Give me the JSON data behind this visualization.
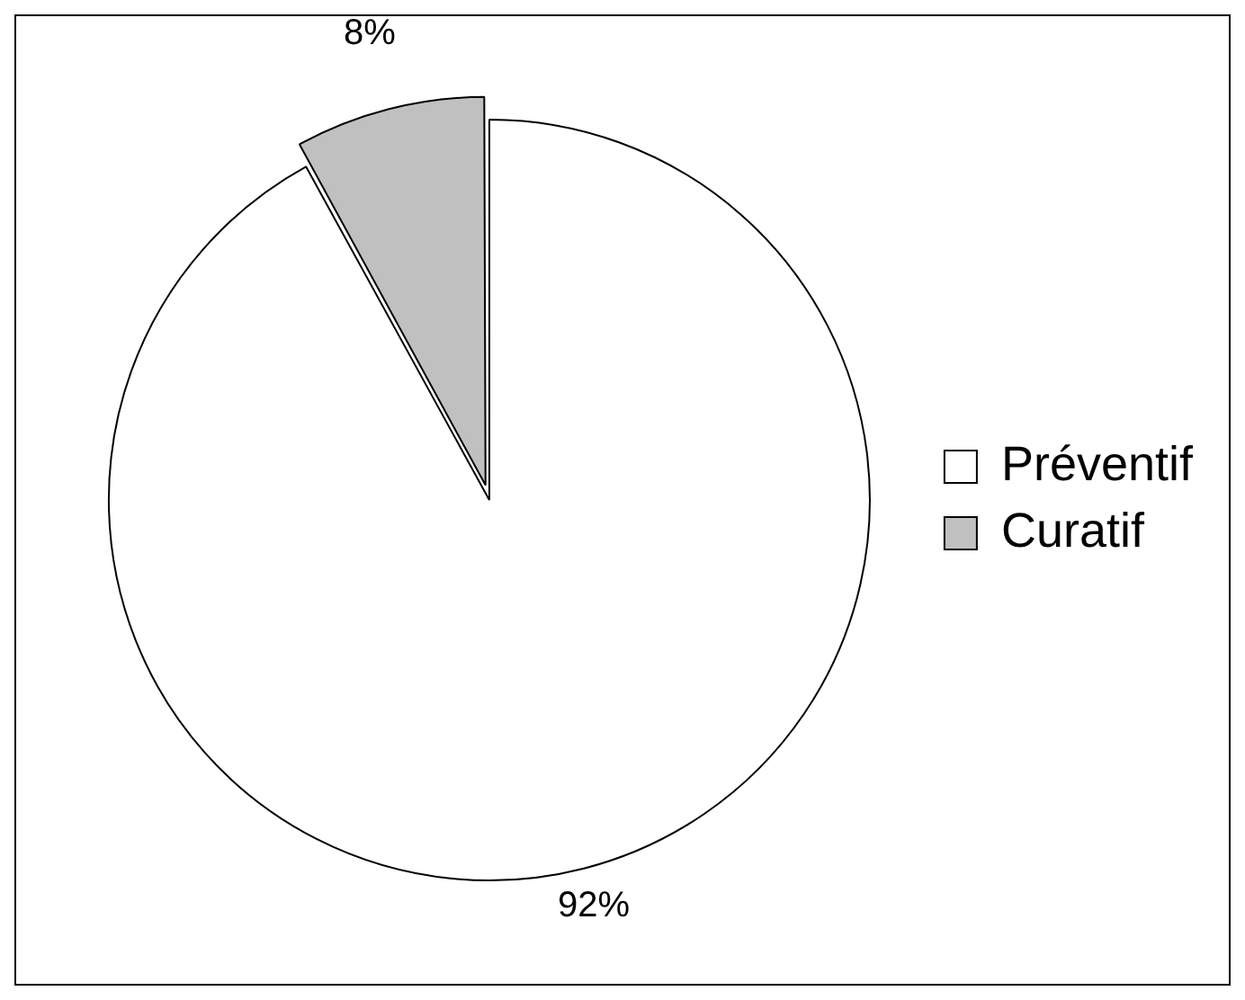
{
  "chart_data": {
    "type": "pie",
    "categories": [
      "Préventif",
      "Curatif"
    ],
    "values": [
      92,
      8
    ],
    "colors": [
      "#ffffff",
      "#c0c0c0"
    ],
    "value_labels": [
      "92%",
      "8%"
    ],
    "legend": "right"
  }
}
